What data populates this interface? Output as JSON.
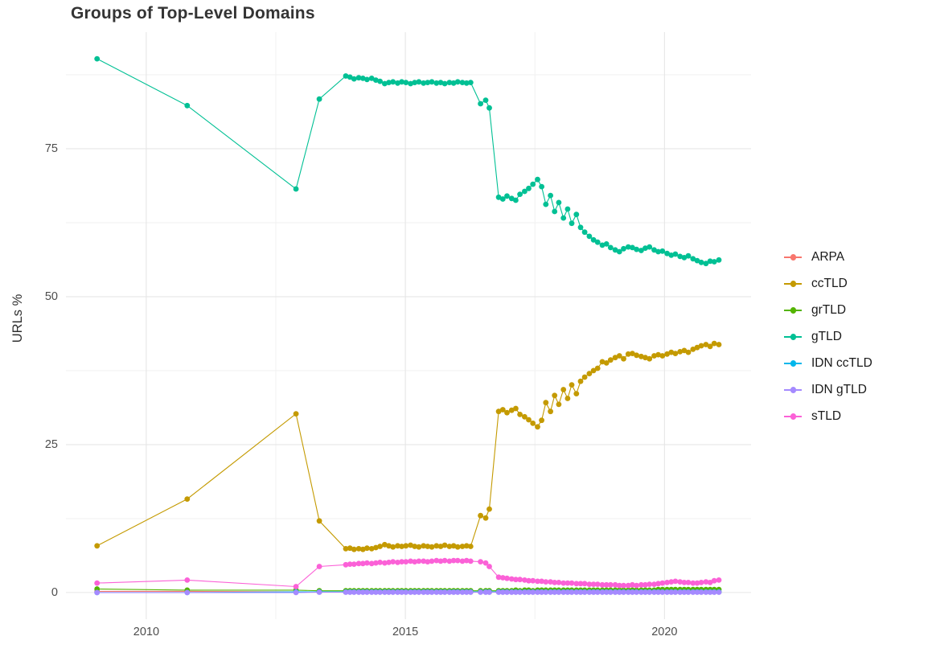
{
  "chart": {
    "title": "Groups of Top-Level Domains",
    "ylabel": "URLs %"
  },
  "chart_data": {
    "type": "line",
    "title": "Groups of Top-Level Domains",
    "xlabel": "",
    "ylabel": "URLs %",
    "xlim": [
      2008.45,
      2021.67
    ],
    "ylim": [
      -4.5,
      94.7
    ],
    "x_ticks": [
      2010,
      2015,
      2020
    ],
    "y_ticks": [
      0,
      25,
      50,
      75
    ],
    "x_minor_ticks": [
      2012.5,
      2017.5
    ],
    "y_minor_ticks": [
      12.5,
      37.5,
      62.5,
      87.5
    ],
    "grid": true,
    "grid_major_color": "#e6e6e6",
    "grid_minor_color": "#f2f2f2",
    "legend_position": "right",
    "x": [
      2009.05,
      2010.79,
      2012.89,
      2013.34,
      2013.85,
      2013.93,
      2014.01,
      2014.1,
      2014.18,
      2014.26,
      2014.35,
      2014.43,
      2014.51,
      2014.6,
      2014.68,
      2014.76,
      2014.85,
      2014.93,
      2015.01,
      2015.1,
      2015.18,
      2015.26,
      2015.35,
      2015.43,
      2015.51,
      2015.6,
      2015.68,
      2015.76,
      2015.85,
      2015.93,
      2016.01,
      2016.1,
      2016.18,
      2016.26,
      2016.45,
      2016.55,
      2016.62,
      2016.8,
      2016.88,
      2016.96,
      2017.05,
      2017.13,
      2017.21,
      2017.3,
      2017.38,
      2017.46,
      2017.55,
      2017.63,
      2017.71,
      2017.8,
      2017.88,
      2017.96,
      2018.05,
      2018.13,
      2018.21,
      2018.3,
      2018.38,
      2018.46,
      2018.55,
      2018.63,
      2018.71,
      2018.8,
      2018.88,
      2018.96,
      2019.05,
      2019.13,
      2019.21,
      2019.3,
      2019.38,
      2019.46,
      2019.55,
      2019.63,
      2019.71,
      2019.8,
      2019.88,
      2019.96,
      2020.05,
      2020.13,
      2020.21,
      2020.3,
      2020.38,
      2020.46,
      2020.55,
      2020.63,
      2020.71,
      2020.8,
      2020.88,
      2020.96,
      2021.05
    ],
    "series": [
      {
        "name": "ARPA",
        "color": "#F8766D",
        "values": [
          0.2,
          0.2,
          0.1,
          0.1,
          0.1,
          0.1,
          0.1,
          0.1,
          0.1,
          0.1,
          0.1,
          0.1,
          0.1,
          0.1,
          0.1,
          0.1,
          0.1,
          0.1,
          0.1,
          0.1,
          0.1,
          0.1,
          0.1,
          0.1,
          0.1,
          0.1,
          0.1,
          0.1,
          0.1,
          0.1,
          0.1,
          0.1,
          0.1,
          0.1,
          0.1,
          0.1,
          0.1,
          0.1,
          0.1,
          0.1,
          0.1,
          0.1,
          0.1,
          0.1,
          0.1,
          0.1,
          0.1,
          0.1,
          0.1,
          0.1,
          0.1,
          0.1,
          0.1,
          0.1,
          0.1,
          0.1,
          0.1,
          0.1,
          0.1,
          0.1,
          0.1,
          0.1,
          0.1,
          0.1,
          0.1,
          0.1,
          0.1,
          0.1,
          0.1,
          0.1,
          0.1,
          0.1,
          0.1,
          0.1,
          0.1,
          0.1,
          0.1,
          0.1,
          0.1,
          0.1,
          0.1,
          0.1,
          0.1,
          0.1,
          0.1,
          0.1,
          0.1,
          0.1,
          0.1
        ]
      },
      {
        "name": "ccTLD",
        "color": "#C49A00",
        "values": [
          7.9,
          15.8,
          30.2,
          12.1,
          7.4,
          7.5,
          7.3,
          7.4,
          7.3,
          7.5,
          7.4,
          7.6,
          7.8,
          8.1,
          7.9,
          7.7,
          7.9,
          7.8,
          7.9,
          8.0,
          7.8,
          7.7,
          7.9,
          7.8,
          7.7,
          7.9,
          7.8,
          8.0,
          7.8,
          7.9,
          7.7,
          7.8,
          7.9,
          7.8,
          13.0,
          12.6,
          14.1,
          30.6,
          30.9,
          30.4,
          30.8,
          31.1,
          30.1,
          29.7,
          29.2,
          28.6,
          28.0,
          29.1,
          32.1,
          30.6,
          33.3,
          31.8,
          34.3,
          32.8,
          35.1,
          33.6,
          35.7,
          36.4,
          37.0,
          37.5,
          37.9,
          39.0,
          38.8,
          39.3,
          39.7,
          40.0,
          39.5,
          40.3,
          40.4,
          40.1,
          39.9,
          39.7,
          39.5,
          40.0,
          40.2,
          40.0,
          40.3,
          40.6,
          40.4,
          40.7,
          40.9,
          40.6,
          41.1,
          41.4,
          41.7,
          41.9,
          41.6,
          42.1,
          41.9
        ]
      },
      {
        "name": "grTLD",
        "color": "#53B400",
        "values": [
          0.6,
          0.4,
          0.4,
          0.3,
          0.3,
          0.3,
          0.3,
          0.3,
          0.3,
          0.3,
          0.3,
          0.3,
          0.3,
          0.3,
          0.3,
          0.3,
          0.3,
          0.3,
          0.3,
          0.3,
          0.3,
          0.3,
          0.3,
          0.3,
          0.3,
          0.3,
          0.3,
          0.3,
          0.3,
          0.3,
          0.3,
          0.3,
          0.3,
          0.3,
          0.3,
          0.3,
          0.3,
          0.3,
          0.3,
          0.3,
          0.3,
          0.4,
          0.3,
          0.4,
          0.4,
          0.3,
          0.4,
          0.4,
          0.4,
          0.4,
          0.4,
          0.4,
          0.4,
          0.4,
          0.4,
          0.4,
          0.4,
          0.4,
          0.4,
          0.4,
          0.4,
          0.4,
          0.4,
          0.4,
          0.4,
          0.4,
          0.4,
          0.4,
          0.4,
          0.4,
          0.4,
          0.4,
          0.4,
          0.4,
          0.5,
          0.5,
          0.5,
          0.5,
          0.5,
          0.5,
          0.5,
          0.5,
          0.5,
          0.5,
          0.5,
          0.5,
          0.5,
          0.5,
          0.5
        ]
      },
      {
        "name": "gTLD",
        "color": "#00C094",
        "values": [
          90.2,
          82.3,
          68.2,
          83.4,
          87.3,
          87.1,
          86.8,
          87.0,
          86.9,
          86.7,
          86.9,
          86.6,
          86.4,
          86.0,
          86.2,
          86.3,
          86.1,
          86.3,
          86.2,
          86.0,
          86.2,
          86.3,
          86.1,
          86.2,
          86.3,
          86.1,
          86.2,
          86.0,
          86.2,
          86.1,
          86.3,
          86.2,
          86.1,
          86.2,
          82.6,
          83.2,
          81.9,
          66.8,
          66.5,
          67.0,
          66.6,
          66.3,
          67.3,
          67.8,
          68.3,
          69.0,
          69.8,
          68.6,
          65.6,
          67.1,
          64.4,
          65.9,
          63.3,
          64.8,
          62.4,
          63.9,
          61.7,
          60.9,
          60.2,
          59.6,
          59.2,
          58.7,
          58.9,
          58.3,
          57.9,
          57.6,
          58.1,
          58.4,
          58.3,
          58.0,
          57.8,
          58.2,
          58.4,
          57.9,
          57.6,
          57.7,
          57.3,
          57.0,
          57.2,
          56.8,
          56.6,
          56.9,
          56.4,
          56.1,
          55.8,
          55.6,
          56.0,
          55.9,
          56.2
        ]
      },
      {
        "name": "IDN ccTLD",
        "color": "#00B6EB",
        "values": [
          0.0,
          0.0,
          0.1,
          0.1,
          0.1,
          0.1,
          0.1,
          0.1,
          0.1,
          0.1,
          0.1,
          0.1,
          0.1,
          0.1,
          0.1,
          0.1,
          0.1,
          0.1,
          0.1,
          0.1,
          0.1,
          0.1,
          0.1,
          0.1,
          0.1,
          0.1,
          0.1,
          0.1,
          0.1,
          0.1,
          0.1,
          0.1,
          0.1,
          0.1,
          0.1,
          0.1,
          0.1,
          0.1,
          0.1,
          0.1,
          0.1,
          0.1,
          0.1,
          0.1,
          0.1,
          0.1,
          0.1,
          0.1,
          0.1,
          0.1,
          0.1,
          0.1,
          0.1,
          0.1,
          0.1,
          0.1,
          0.1,
          0.1,
          0.1,
          0.1,
          0.1,
          0.1,
          0.1,
          0.1,
          0.1,
          0.1,
          0.1,
          0.1,
          0.1,
          0.1,
          0.1,
          0.1,
          0.1,
          0.1,
          0.1,
          0.1,
          0.1,
          0.1,
          0.1,
          0.1,
          0.1,
          0.1,
          0.1,
          0.1,
          0.1,
          0.1,
          0.1,
          0.1,
          0.1
        ]
      },
      {
        "name": "IDN gTLD",
        "color": "#A58AFF",
        "values": [
          0.0,
          0.0,
          0.0,
          0.05,
          0.05,
          0.05,
          0.05,
          0.05,
          0.05,
          0.05,
          0.05,
          0.05,
          0.05,
          0.05,
          0.05,
          0.05,
          0.05,
          0.05,
          0.05,
          0.05,
          0.05,
          0.05,
          0.05,
          0.05,
          0.05,
          0.05,
          0.05,
          0.05,
          0.05,
          0.05,
          0.05,
          0.05,
          0.05,
          0.05,
          0.05,
          0.05,
          0.05,
          0.05,
          0.05,
          0.05,
          0.05,
          0.05,
          0.05,
          0.05,
          0.05,
          0.05,
          0.05,
          0.05,
          0.05,
          0.05,
          0.05,
          0.05,
          0.05,
          0.05,
          0.05,
          0.05,
          0.05,
          0.05,
          0.05,
          0.05,
          0.05,
          0.05,
          0.05,
          0.05,
          0.05,
          0.05,
          0.05,
          0.05,
          0.05,
          0.05,
          0.05,
          0.05,
          0.05,
          0.05,
          0.05,
          0.05,
          0.05,
          0.05,
          0.05,
          0.05,
          0.05,
          0.05,
          0.05,
          0.05,
          0.05,
          0.05,
          0.05,
          0.05,
          0.05
        ]
      },
      {
        "name": "sTLD",
        "color": "#FB61D7",
        "values": [
          1.6,
          2.1,
          1.0,
          4.4,
          4.7,
          4.8,
          4.8,
          4.9,
          4.9,
          5.0,
          4.9,
          5.0,
          5.1,
          5.0,
          5.1,
          5.2,
          5.1,
          5.2,
          5.2,
          5.3,
          5.2,
          5.3,
          5.3,
          5.2,
          5.3,
          5.4,
          5.3,
          5.4,
          5.3,
          5.4,
          5.4,
          5.3,
          5.4,
          5.3,
          5.2,
          5.0,
          4.4,
          2.6,
          2.5,
          2.4,
          2.3,
          2.2,
          2.2,
          2.1,
          2.0,
          2.0,
          1.9,
          1.9,
          1.8,
          1.8,
          1.7,
          1.7,
          1.6,
          1.6,
          1.6,
          1.5,
          1.5,
          1.5,
          1.4,
          1.4,
          1.4,
          1.3,
          1.3,
          1.3,
          1.3,
          1.2,
          1.2,
          1.2,
          1.3,
          1.2,
          1.3,
          1.3,
          1.4,
          1.4,
          1.5,
          1.6,
          1.7,
          1.8,
          1.9,
          1.8,
          1.7,
          1.7,
          1.6,
          1.6,
          1.7,
          1.8,
          1.7,
          2.0,
          2.1
        ]
      }
    ]
  }
}
